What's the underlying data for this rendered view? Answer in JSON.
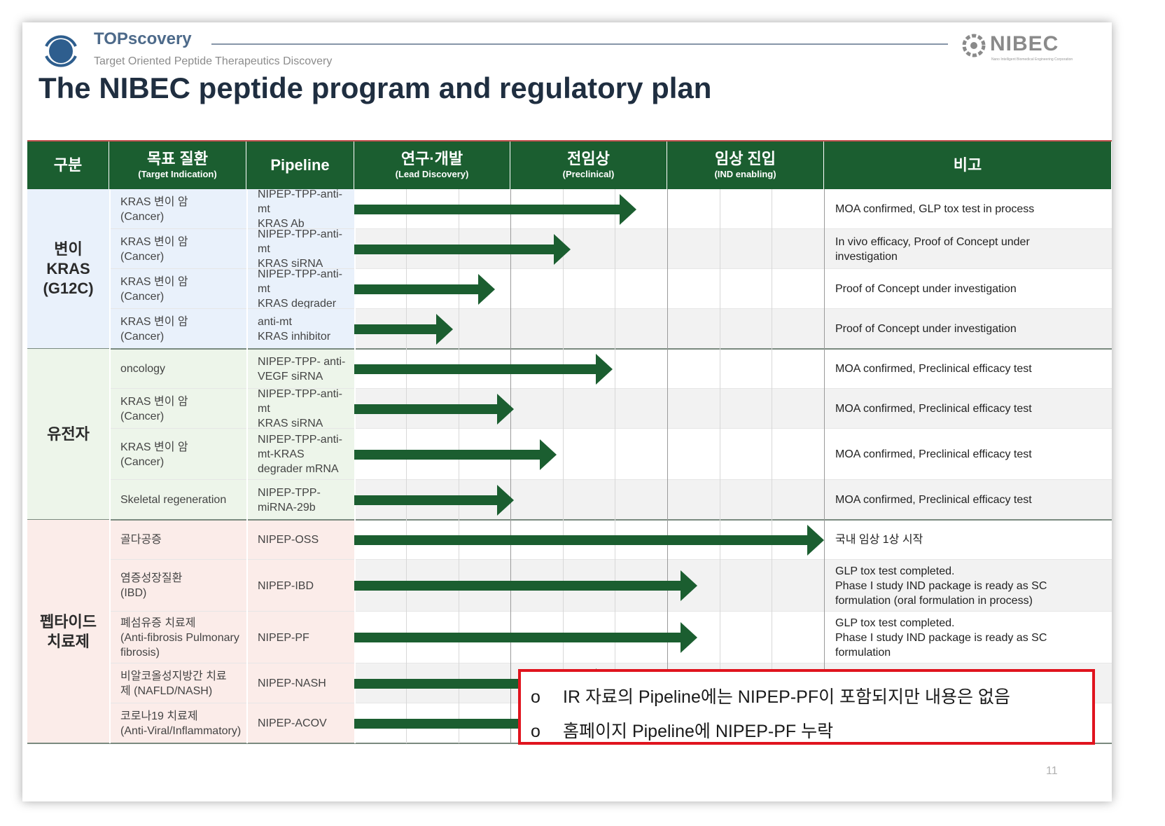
{
  "header": {
    "brand": "TOPscovery",
    "tagline": "Target Oriented Peptide Therapeutics Discovery",
    "partner_logo": "NIBEC",
    "partner_sub": "Nano Intelligent Biomedical Engineering Corporation"
  },
  "title": "The NIBEC peptide program and regulatory plan",
  "table": {
    "columns": [
      {
        "k": "구분",
        "e": ""
      },
      {
        "k": "목표 질환",
        "e": "(Target Indication)"
      },
      {
        "k": "Pipeline",
        "e": ""
      },
      {
        "k": "연구·개발",
        "e": "(Lead Discovery)"
      },
      {
        "k": "전임상",
        "e": "(Preclinical)"
      },
      {
        "k": "임상 진입",
        "e": "(IND enabling)"
      },
      {
        "k": "비고",
        "e": ""
      }
    ],
    "groups": [
      {
        "label": "변이\nKRAS\n(G12C)",
        "color": "#e9f1fb"
      },
      {
        "label": "유전자",
        "color": "#edf5ea"
      },
      {
        "label": "펩타이드\n치료제",
        "color": "#fbece9"
      }
    ],
    "rows": [
      {
        "indication": "KRAS 변이 암\n(Cancer)",
        "pipeline": "NIPEP-TPP-anti-mt\nKRAS Ab",
        "progress": 0.6,
        "note": "MOA confirmed, GLP tox test  in process"
      },
      {
        "indication": "KRAS 변이 암\n(Cancer)",
        "pipeline": "NIPEP-TPP-anti-mt\nKRAS siRNA",
        "progress": 0.46,
        "note": "In vivo efficacy, Proof of Concept  under\ninvestigation"
      },
      {
        "indication": "KRAS 변이 암\n(Cancer)",
        "pipeline": "NIPEP-TPP-anti-mt\nKRAS degrader",
        "progress": 0.3,
        "note": "Proof of Concept under investigation"
      },
      {
        "indication": "KRAS 변이 암\n(Cancer)",
        "pipeline": "anti-mt\nKRAS inhibitor",
        "progress": 0.21,
        "note": "Proof of Concept under investigation"
      },
      {
        "indication": "oncology",
        "pipeline": "NIPEP-TPP- anti-\nVEGF siRNA",
        "progress": 0.55,
        "note": "MOA confirmed, Preclinical efficacy test"
      },
      {
        "indication": "KRAS 변이 암\n(Cancer)",
        "pipeline": "NIPEP-TPP-anti-mt\nKRAS siRNA",
        "progress": 0.34,
        "note": "MOA confirmed, Preclinical efficacy test"
      },
      {
        "indication": "KRAS 변이 암\n(Cancer)",
        "pipeline": "NIPEP-TPP-anti-\nmt-KRAS\ndegrader  mRNA",
        "progress": 0.43,
        "note": "MOA confirmed, Preclinical efficacy test"
      },
      {
        "indication": "Skeletal regeneration",
        "pipeline": "NIPEP-TPP-\nmiRNA-29b",
        "progress": 0.34,
        "note": "MOA confirmed, Preclinical efficacy test"
      },
      {
        "indication": "골다공증",
        "pipeline": "NIPEP-OSS",
        "progress": 1.0,
        "note": "국내 임상 1상 시작"
      },
      {
        "indication": "염증성장질환\n(IBD)",
        "pipeline": "NIPEP-IBD",
        "progress": 0.73,
        "note": "GLP tox test completed.\nPhase  I study IND package is ready as SC\nformulation (oral formulation in process)"
      },
      {
        "indication": "폐섬유증 치료제\n(Anti-fibrosis Pulmonary\nfibrosis)",
        "pipeline": "NIPEP-PF",
        "progress": 0.73,
        "note": "GLP tox test completed.\nPhase  I study IND package is ready as SC\nformulation"
      },
      {
        "indication": "비알코올성지방간 치료\n제 (NAFLD/NASH)",
        "pipeline": "NIPEP-NASH",
        "progress": 0.55,
        "note": ""
      },
      {
        "indication": "코로나19 치료제\n(Anti-Viral/Inflammatory)",
        "pipeline": "NIPEP-ACOV",
        "progress": 0.55,
        "note": ""
      }
    ]
  },
  "callout": {
    "bullet": "o",
    "lines": [
      "IR 자료의 Pipeline에는 NIPEP-PF이 포함되지만 내용은 없음",
      "홈페이지 Pipeline에 NIPEP-PF 누락"
    ]
  },
  "page_number": "11",
  "colors": {
    "header_green": "#1b5e30",
    "arrow_green": "#1b5e30",
    "callout_red": "#e0141e"
  }
}
